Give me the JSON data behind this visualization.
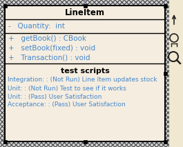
{
  "class_name": "LineItem",
  "attributes": [
    "-   Quantity:  int"
  ],
  "methods": [
    "+   getBook() : CBook",
    "+   setBook(fixed) : void",
    "+   Transaction() : void"
  ],
  "test_section_title": "test scripts",
  "test_items": [
    "Integration: : (Not Run) Line Item updates stock",
    "Unit: : (Not Run) Test to see if it works",
    "Unit: : (Pass) User Satisfaction",
    "Acceptance: : (Pass) User Satisfaction"
  ],
  "bg_color": "#f5ede0",
  "border_color": "#000000",
  "text_color": "#4488cc",
  "title_text_color": "#000000",
  "hatch_bg": "#d8d8d8",
  "fig_bg": "#f0e8d0",
  "connector_color": "#9988bb",
  "icon_color": "#222222"
}
